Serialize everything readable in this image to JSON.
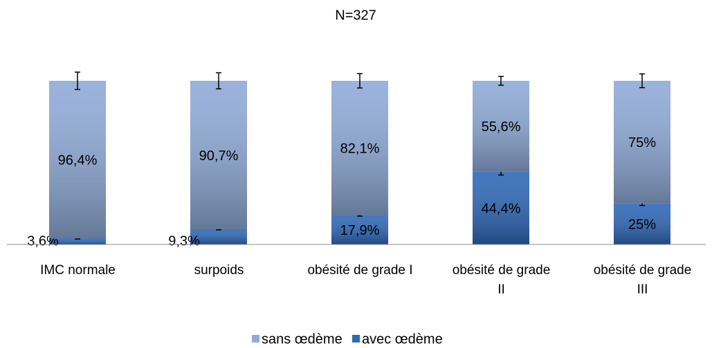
{
  "chart_data": {
    "type": "stacked_bar",
    "title": "N=327",
    "categories": [
      "IMC normale",
      "surpoids",
      "obésité de grade I",
      "obésité de grade II",
      "obésité de grade III"
    ],
    "series": [
      {
        "name": "avec œdème",
        "color": "#2e68b8",
        "values": [
          3.6,
          9.3,
          17.9,
          44.4,
          25
        ],
        "value_labels": [
          "3,6%",
          "9,3%",
          "17,9%",
          "44,4%",
          "25%"
        ],
        "errors": [
          0.3,
          0.4,
          0.6,
          2,
          1.2
        ]
      },
      {
        "name": "sans œdème",
        "color": "#8fabd8",
        "values": [
          96.4,
          90.7,
          82.1,
          55.6,
          75
        ],
        "value_labels": [
          "96,4%",
          "90,7%",
          "82,1%",
          "55,6%",
          "75%"
        ],
        "errors": [
          5.3,
          4.9,
          4.4,
          2.7,
          4.2
        ]
      }
    ],
    "ylim": [
      0,
      100
    ],
    "legend": "bottom"
  }
}
